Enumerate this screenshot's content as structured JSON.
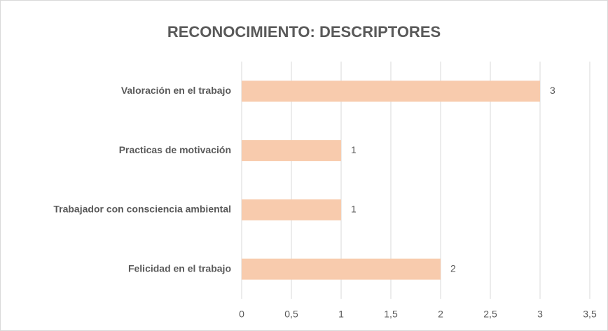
{
  "chart_data": {
    "type": "barh",
    "title": "RECONOCIMIENTO: DESCRIPTORES",
    "categories": [
      "Valoración en el trabajo",
      "Practicas de motivación",
      "Trabajador con consciencia ambiental",
      "Felicidad en el trabajo"
    ],
    "values": [
      3,
      1,
      1,
      2
    ],
    "color": "#f8cbad",
    "xlim": [
      0,
      3.5
    ],
    "xticks": [
      0,
      {
        "value": 0.5,
        "label": "0,5"
      },
      1,
      {
        "value": 1.5,
        "label": "1,5"
      },
      2,
      {
        "value": 2.5,
        "label": "2,5"
      },
      3,
      {
        "value": 3.5,
        "label": "3,5"
      }
    ],
    "grid": true
  }
}
